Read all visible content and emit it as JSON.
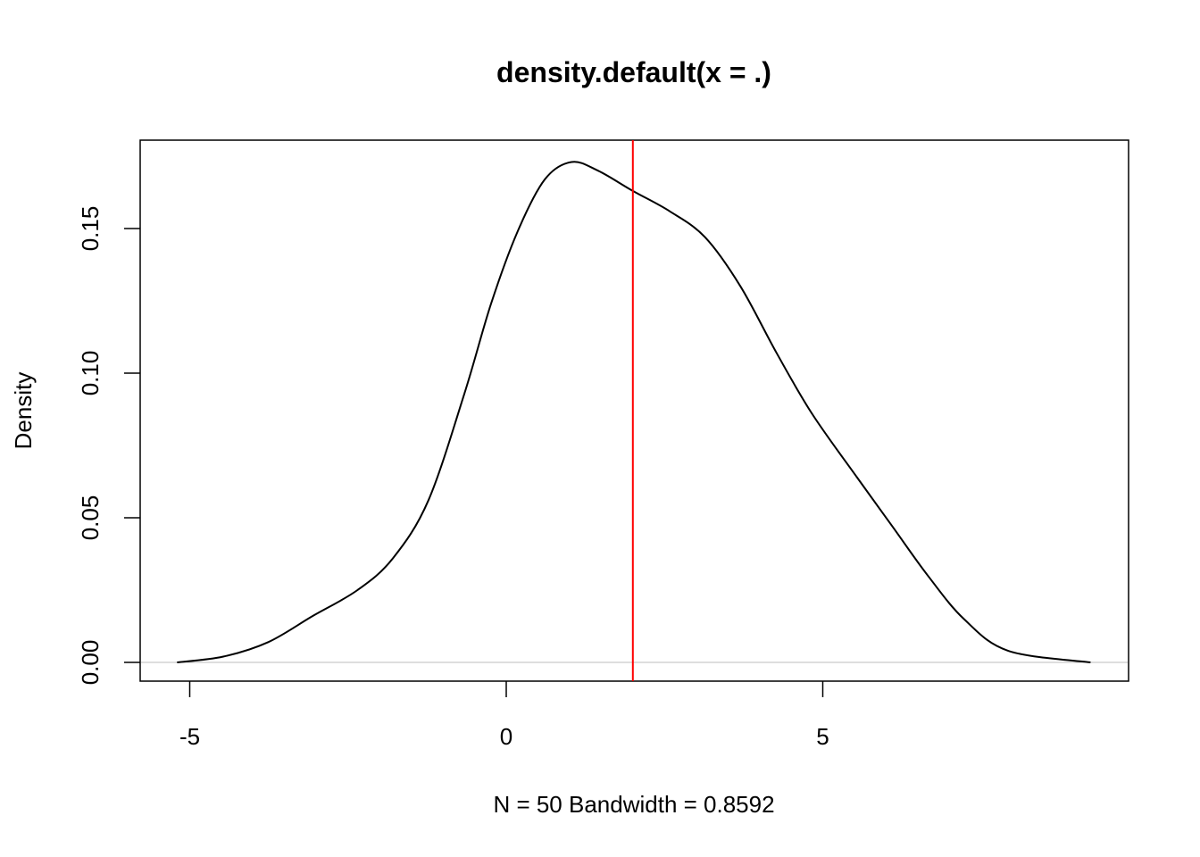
{
  "chart_data": {
    "type": "line",
    "title": "density.default(x = .)",
    "xlabel": "N = 50   Bandwidth = 0.8592",
    "ylabel": "Density",
    "xlim": [
      -5.8,
      9.8
    ],
    "ylim": [
      -0.0065,
      0.18
    ],
    "xticks": [
      -5,
      0,
      5
    ],
    "xtick_labels": [
      "-5",
      "0",
      "5"
    ],
    "yticks": [
      0,
      0.05,
      0.1,
      0.15
    ],
    "ytick_labels": [
      "0.00",
      "0.05",
      "0.10",
      "0.15"
    ],
    "grid": false,
    "series": [
      {
        "name": "density",
        "color": "#000000",
        "x": [
          -5.2,
          -4.47,
          -3.76,
          -3.06,
          -2.35,
          -1.79,
          -1.23,
          -0.66,
          -0.24,
          0.18,
          0.61,
          1.03,
          1.45,
          2.0,
          2.58,
          3.14,
          3.7,
          4.27,
          4.83,
          5.54,
          6.1,
          6.66,
          7.23,
          7.93,
          9.23
        ],
        "y": [
          0.0,
          0.002,
          0.007,
          0.016,
          0.025,
          0.036,
          0.056,
          0.093,
          0.124,
          0.149,
          0.167,
          0.173,
          0.17,
          0.163,
          0.156,
          0.147,
          0.13,
          0.107,
          0.086,
          0.064,
          0.047,
          0.03,
          0.015,
          0.004,
          0.0
        ]
      }
    ],
    "vline": {
      "x": 2.0,
      "color": "#ff0000"
    },
    "hline": {
      "y": 0,
      "color": "#bebebe"
    }
  }
}
